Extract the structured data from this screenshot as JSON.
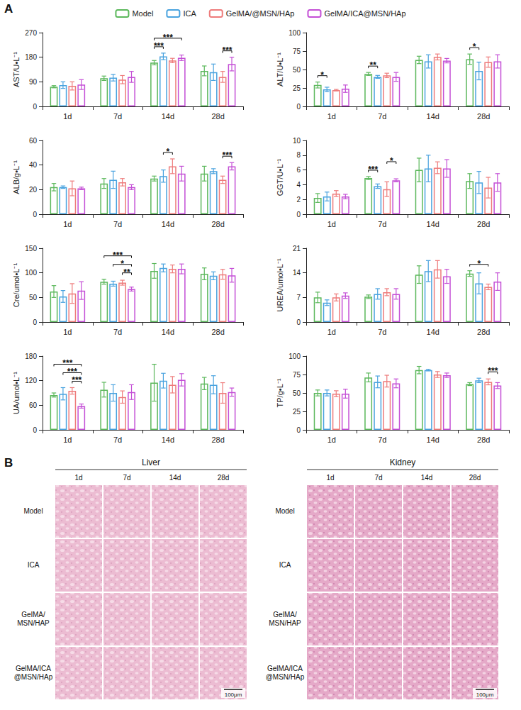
{
  "panel_a": {
    "letter": "A",
    "legend": "top"
  },
  "chart_data": [
    {
      "type": "bar",
      "y_label": "AST/U•L⁻¹",
      "categories": [
        "1d",
        "7d",
        "14d",
        "28d"
      ],
      "ylim": [
        0,
        270
      ],
      "yticks": [
        0,
        90,
        180,
        270
      ],
      "grid": false,
      "series": [
        {
          "name": "Model",
          "color": "#5cb85c",
          "values": [
            72,
            103,
            160,
            130
          ],
          "errors": [
            4,
            8,
            8,
            18
          ]
        },
        {
          "name": "ICA",
          "color": "#4aa3df",
          "values": [
            78,
            105,
            183,
            125
          ],
          "errors": [
            12,
            12,
            12,
            30
          ]
        },
        {
          "name": "GelMA/@MSN/HAp",
          "color": "#ee7b7b",
          "values": [
            75,
            98,
            168,
            108
          ],
          "errors": [
            15,
            15,
            8,
            20
          ]
        },
        {
          "name": "GelMA/ICA@MSN/HAp",
          "color": "#c44fd6",
          "values": [
            80,
            108,
            178,
            155
          ],
          "errors": [
            18,
            20,
            10,
            25
          ]
        }
      ],
      "significance": [
        {
          "category": "14d",
          "pair": [
            "Model",
            "ICA"
          ],
          "label": "***"
        },
        {
          "category": "14d",
          "pair": [
            "Model",
            "GelMA/ICA@MSN/HAp"
          ],
          "label": "***"
        },
        {
          "category": "28d",
          "pair": [
            "GelMA/@MSN/HAp",
            "GelMA/ICA@MSN/HAp"
          ],
          "label": "***"
        }
      ]
    },
    {
      "type": "bar",
      "y_label": "ALT/U•L⁻¹",
      "categories": [
        "1d",
        "7d",
        "14d",
        "28d"
      ],
      "ylim": [
        0,
        100
      ],
      "yticks": [
        0,
        25,
        50,
        75,
        100
      ],
      "grid": false,
      "series": [
        {
          "name": "Model",
          "color": "#5cb85c",
          "values": [
            29,
            44,
            63,
            64
          ],
          "errors": [
            4,
            2,
            5,
            7
          ]
        },
        {
          "name": "ICA",
          "color": "#4aa3df",
          "values": [
            23,
            40,
            61,
            48
          ],
          "errors": [
            3,
            2,
            9,
            12
          ]
        },
        {
          "name": "GelMA/@MSN/HAp",
          "color": "#ee7b7b",
          "values": [
            22,
            42,
            67,
            60
          ],
          "errors": [
            1,
            3,
            4,
            7
          ]
        },
        {
          "name": "GelMA/ICA@MSN/HAp",
          "color": "#c44fd6",
          "values": [
            24,
            40,
            62,
            61
          ],
          "errors": [
            5,
            6,
            3,
            9
          ]
        }
      ],
      "significance": [
        {
          "category": "1d",
          "pair": [
            "Model",
            "ICA"
          ],
          "label": "*"
        },
        {
          "category": "7d",
          "pair": [
            "Model",
            "ICA"
          ],
          "label": "**"
        },
        {
          "category": "28d",
          "pair": [
            "Model",
            "ICA"
          ],
          "label": "*"
        }
      ]
    },
    {
      "type": "bar",
      "y_label": "ALB/g•L⁻¹",
      "categories": [
        "1d",
        "7d",
        "14d",
        "28d"
      ],
      "ylim": [
        0,
        60
      ],
      "yticks": [
        0,
        20,
        40,
        60
      ],
      "grid": false,
      "series": [
        {
          "name": "Model",
          "color": "#5cb85c",
          "values": [
            22,
            25,
            29,
            33
          ],
          "errors": [
            3,
            4,
            2,
            6
          ]
        },
        {
          "name": "ICA",
          "color": "#4aa3df",
          "values": [
            22,
            28,
            31,
            35
          ],
          "errors": [
            1,
            7,
            5,
            2
          ]
        },
        {
          "name": "GelMA/@MSN/HAp",
          "color": "#ee7b7b",
          "values": [
            21,
            26,
            39,
            28
          ],
          "errors": [
            6,
            3,
            6,
            3
          ]
        },
        {
          "name": "GelMA/ICA@MSN/HAp",
          "color": "#c44fd6",
          "values": [
            21,
            22,
            33,
            39
          ],
          "errors": [
            1,
            2,
            6,
            3
          ]
        }
      ],
      "significance": [
        {
          "category": "14d",
          "pair": [
            "ICA",
            "GelMA/@MSN/HAp"
          ],
          "label": "*"
        },
        {
          "category": "28d",
          "pair": [
            "GelMA/@MSN/HAp",
            "GelMA/ICA@MSN/HAp"
          ],
          "label": "***"
        }
      ]
    },
    {
      "type": "bar",
      "y_label": "GGT/U•L⁻¹",
      "categories": [
        "1d",
        "7d",
        "14d",
        "28d"
      ],
      "ylim": [
        0,
        10
      ],
      "yticks": [
        0,
        2,
        4,
        6,
        8,
        10
      ],
      "grid": false,
      "series": [
        {
          "name": "Model",
          "color": "#5cb85c",
          "values": [
            2.2,
            4.9,
            6.0,
            4.5
          ],
          "errors": [
            0.6,
            0.2,
            1.6,
            1.0
          ]
        },
        {
          "name": "ICA",
          "color": "#4aa3df",
          "values": [
            2.4,
            3.8,
            6.2,
            4.3
          ],
          "errors": [
            0.6,
            0.3,
            1.8,
            1.5
          ]
        },
        {
          "name": "GelMA/@MSN/HAp",
          "color": "#ee7b7b",
          "values": [
            2.8,
            3.4,
            6.3,
            3.6
          ],
          "errors": [
            0.4,
            1.0,
            0.8,
            1.4
          ]
        },
        {
          "name": "GelMA/ICA@MSN/HAp",
          "color": "#c44fd6",
          "values": [
            2.4,
            4.6,
            6.2,
            4.3
          ],
          "errors": [
            0.3,
            0.2,
            1.2,
            1.2
          ]
        }
      ],
      "significance": [
        {
          "category": "7d",
          "pair": [
            "Model",
            "ICA"
          ],
          "label": "***"
        },
        {
          "category": "7d",
          "pair": [
            "GelMA/@MSN/HAp",
            "GelMA/ICA@MSN/HAp"
          ],
          "label": "*"
        }
      ]
    },
    {
      "type": "bar",
      "y_label": "Cre/umol•L⁻¹",
      "categories": [
        "1d",
        "7d",
        "14d",
        "28d"
      ],
      "ylim": [
        0,
        150
      ],
      "yticks": [
        0,
        50,
        100,
        150
      ],
      "grid": false,
      "series": [
        {
          "name": "Model",
          "color": "#5cb85c",
          "values": [
            62,
            82,
            104,
            98
          ],
          "errors": [
            12,
            5,
            15,
            12
          ]
        },
        {
          "name": "ICA",
          "color": "#4aa3df",
          "values": [
            52,
            78,
            110,
            94
          ],
          "errors": [
            12,
            5,
            8,
            8
          ]
        },
        {
          "name": "GelMA/@MSN/HAp",
          "color": "#ee7b7b",
          "values": [
            58,
            80,
            108,
            97
          ],
          "errors": [
            20,
            5,
            8,
            10
          ]
        },
        {
          "name": "GelMA/ICA@MSN/HAp",
          "color": "#c44fd6",
          "values": [
            64,
            67,
            108,
            95
          ],
          "errors": [
            18,
            4,
            10,
            14
          ]
        }
      ],
      "significance": [
        {
          "category": "7d",
          "pair": [
            "GelMA/@MSN/HAp",
            "GelMA/ICA@MSN/HAp"
          ],
          "label": "**"
        },
        {
          "category": "7d",
          "pair": [
            "ICA",
            "GelMA/ICA@MSN/HAp"
          ],
          "label": "*"
        },
        {
          "category": "7d",
          "pair": [
            "Model",
            "GelMA/ICA@MSN/HAp"
          ],
          "label": "***"
        }
      ]
    },
    {
      "type": "bar",
      "y_label": "UREA/umol•L⁻¹",
      "categories": [
        "1d",
        "7d",
        "14d",
        "28d"
      ],
      "ylim": [
        0,
        21
      ],
      "yticks": [
        0,
        7,
        14,
        21
      ],
      "grid": false,
      "series": [
        {
          "name": "Model",
          "color": "#5cb85c",
          "values": [
            7.0,
            7.2,
            13.5,
            13.8
          ],
          "errors": [
            1.5,
            0.5,
            2.5,
            0.8
          ]
        },
        {
          "name": "ICA",
          "color": "#4aa3df",
          "values": [
            5.5,
            8.0,
            14.5,
            11.0
          ],
          "errors": [
            0.8,
            1.5,
            3.0,
            3.0
          ]
        },
        {
          "name": "GelMA/@MSN/HAp",
          "color": "#ee7b7b",
          "values": [
            7.0,
            8.5,
            15.0,
            10.0
          ],
          "errors": [
            1.0,
            1.0,
            2.5,
            0.8
          ]
        },
        {
          "name": "GelMA/ICA@MSN/HAp",
          "color": "#c44fd6",
          "values": [
            7.5,
            8.0,
            13.0,
            11.5
          ],
          "errors": [
            0.8,
            1.5,
            2.0,
            2.5
          ]
        }
      ],
      "significance": [
        {
          "category": "28d",
          "pair": [
            "Model",
            "GelMA/@MSN/HAp"
          ],
          "label": "*"
        }
      ]
    },
    {
      "type": "bar",
      "y_label": "UA/umol•L⁻¹",
      "categories": [
        "1d",
        "7d",
        "14d",
        "28d"
      ],
      "ylim": [
        0,
        180
      ],
      "yticks": [
        0,
        60,
        120,
        180
      ],
      "grid": false,
      "series": [
        {
          "name": "Model",
          "color": "#5cb85c",
          "values": [
            85,
            98,
            115,
            113
          ],
          "errors": [
            5,
            18,
            45,
            15
          ]
        },
        {
          "name": "ICA",
          "color": "#4aa3df",
          "values": [
            88,
            90,
            120,
            110
          ],
          "errors": [
            15,
            20,
            18,
            22
          ]
        },
        {
          "name": "GelMA/@MSN/HAp",
          "color": "#ee7b7b",
          "values": [
            95,
            80,
            110,
            90
          ],
          "errors": [
            8,
            15,
            20,
            25
          ]
        },
        {
          "name": "GelMA/ICA@MSN/HAp",
          "color": "#c44fd6",
          "values": [
            58,
            92,
            122,
            92
          ],
          "errors": [
            5,
            18,
            15,
            10
          ]
        }
      ],
      "significance": [
        {
          "category": "1d",
          "pair": [
            "GelMA/@MSN/HAp",
            "GelMA/ICA@MSN/HAp"
          ],
          "label": "***"
        },
        {
          "category": "1d",
          "pair": [
            "ICA",
            "GelMA/ICA@MSN/HAp"
          ],
          "label": "***"
        },
        {
          "category": "1d",
          "pair": [
            "Model",
            "GelMA/ICA@MSN/HAp"
          ],
          "label": "***"
        }
      ]
    },
    {
      "type": "bar",
      "y_label": "TP/g•L⁻¹",
      "categories": [
        "1d",
        "7d",
        "14d",
        "28d"
      ],
      "ylim": [
        0,
        100
      ],
      "yticks": [
        0,
        25,
        50,
        75,
        100
      ],
      "grid": false,
      "series": [
        {
          "name": "Model",
          "color": "#5cb85c",
          "values": [
            50,
            71,
            81,
            62
          ],
          "errors": [
            4,
            6,
            5,
            2
          ]
        },
        {
          "name": "ICA",
          "color": "#4aa3df",
          "values": [
            50,
            65,
            81,
            67
          ],
          "errors": [
            4,
            8,
            1,
            3
          ]
        },
        {
          "name": "GelMA/@MSN/HAp",
          "color": "#ee7b7b",
          "values": [
            49,
            66,
            75,
            65
          ],
          "errors": [
            4,
            8,
            4,
            4
          ]
        },
        {
          "name": "GelMA/ICA@MSN/HAp",
          "color": "#c44fd6",
          "values": [
            49,
            63,
            74,
            60
          ],
          "errors": [
            6,
            6,
            3,
            4
          ]
        }
      ],
      "significance": [
        {
          "category": "28d",
          "pair": [
            "GelMA/@MSN/HAp",
            "GelMA/ICA@MSN/HAp"
          ],
          "label": "***"
        }
      ]
    }
  ],
  "panel_b": {
    "letter": "B",
    "blocks": [
      {
        "title": "Liver",
        "columns": [
          "1d",
          "7d",
          "14d",
          "28d"
        ],
        "rows": [
          "Model",
          "ICA",
          "GelMA/ MSN/HAP",
          "GelMA/ICA @MSN/HAp"
        ],
        "scale_bar": "100μm"
      },
      {
        "title": "Kidney",
        "columns": [
          "1d",
          "7d",
          "14d",
          "28d"
        ],
        "rows": [
          "Model",
          "ICA",
          "GelMA/ MSN/HAP",
          "GelMA/ICA @MSN/HAp"
        ],
        "scale_bar": "100μm"
      }
    ]
  }
}
